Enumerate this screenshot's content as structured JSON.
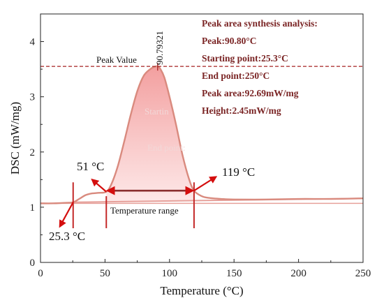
{
  "chart_data": {
    "type": "line",
    "xlabel": "Temperature (°C)",
    "ylabel": "DSC (mW/mg)",
    "xlim": [
      0,
      250
    ],
    "ylim": [
      0,
      4.5
    ],
    "xticks": [
      0,
      50,
      100,
      150,
      200,
      250
    ],
    "yticks": [
      0,
      1,
      2,
      3,
      4
    ],
    "grid": false,
    "series": [
      {
        "x": [
          0,
          10,
          20,
          25.3,
          30,
          35,
          40,
          45,
          51,
          55,
          60,
          65,
          70,
          75,
          80,
          85,
          88,
          90.8,
          93,
          96,
          100,
          105,
          110,
          115,
          119,
          125,
          130,
          140,
          150,
          175,
          200,
          225,
          250
        ],
        "y": [
          1.07,
          1.07,
          1.08,
          1.09,
          1.15,
          1.22,
          1.25,
          1.26,
          1.28,
          1.42,
          1.75,
          2.2,
          2.68,
          3.1,
          3.38,
          3.5,
          3.54,
          3.55,
          3.5,
          3.35,
          3.0,
          2.5,
          1.95,
          1.52,
          1.3,
          1.2,
          1.17,
          1.15,
          1.14,
          1.14,
          1.15,
          1.15,
          1.16
        ]
      }
    ],
    "baseline": {
      "x": [
        25.3,
        250
      ],
      "y": [
        1.09,
        1.16
      ]
    },
    "reference_line": {
      "x": [
        0,
        250
      ],
      "y": [
        1.07,
        1.07
      ]
    },
    "peak_line_y": 3.55,
    "peak_label": "90.79321",
    "peak_value_label": "Peak Value",
    "markers": [
      {
        "x": 25.3,
        "label": "25.3 °C"
      },
      {
        "x": 51,
        "label": "51 °C"
      },
      {
        "x": 119,
        "label": "119 °C"
      }
    ],
    "range_label": "Temperature range",
    "faint_labels": [
      "Startin",
      "End point:"
    ],
    "info_box": [
      "Peak area synthesis analysis:",
      "Peak:90.80°C",
      "Starting point:25.3°C",
      "End point:250°C",
      "Peak area:92.69mW/mg",
      "Height:2.45mW/mg"
    ],
    "colors": {
      "curve": "#d98a7e",
      "fill": "#f7b4b4",
      "arrow": "#d40e0e",
      "marker_line": "#c42828",
      "peak_line": "#a52020",
      "baseline": "#e6a09a",
      "info_text": "#7a2424"
    }
  }
}
